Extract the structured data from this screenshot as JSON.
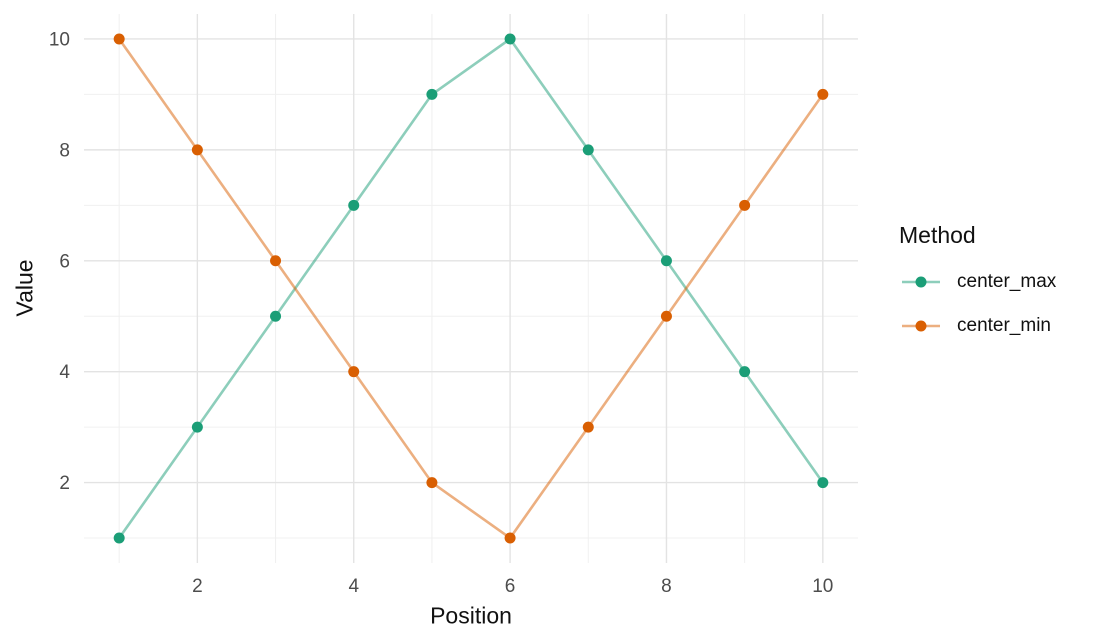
{
  "figure": {
    "background": "#ffffff"
  },
  "chart_data": {
    "type": "line",
    "title": "",
    "xlabel": "Position",
    "ylabel": "Value",
    "x": [
      1,
      2,
      3,
      4,
      5,
      6,
      7,
      8,
      9,
      10
    ],
    "series": [
      {
        "name": "center_max",
        "color": "#1b9e77",
        "values": [
          1,
          3,
          5,
          7,
          9,
          10,
          8,
          6,
          4,
          2
        ]
      },
      {
        "name": "center_min",
        "color": "#d95f02",
        "values": [
          10,
          8,
          6,
          4,
          2,
          1,
          3,
          5,
          7,
          9
        ]
      }
    ],
    "x_ticks": [
      2,
      4,
      6,
      8,
      10
    ],
    "y_ticks": [
      2,
      4,
      6,
      8,
      10
    ],
    "x_minor_gridlines": [
      1,
      3,
      5,
      7,
      9
    ],
    "y_minor_gridlines": [
      1,
      3,
      5,
      7,
      9
    ],
    "x_domain": [
      0.55,
      10.45
    ],
    "y_domain": [
      0.55,
      10.45
    ],
    "grid": "on",
    "legend": {
      "title": "Method",
      "position": "right"
    },
    "style": {
      "line_alpha": 0.5,
      "line_width": 2.6,
      "point_radius": 5.5,
      "grid_major_color": "#e3e3e3",
      "grid_minor_color": "#f0f0f0",
      "tick_label_color": "#4d4d4d",
      "text_color": "#111111"
    }
  }
}
